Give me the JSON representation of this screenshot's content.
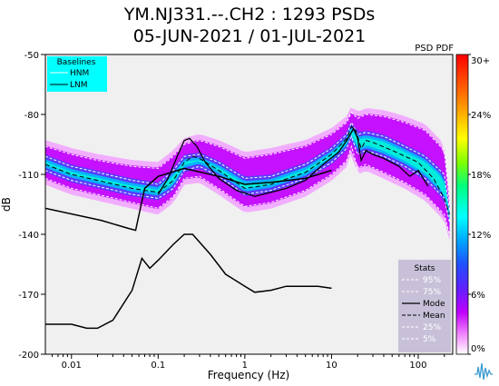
{
  "chart_data": {
    "type": "heatmap",
    "title": "YM.NJ331.--.CH2 : 1293 PSDs",
    "subtitle": "05-JUN-2021 / 01-JUL-2021",
    "corner_label": "PSD PDF",
    "xlabel": "Frequency (Hz)",
    "ylabel": "dB",
    "x_scale": "log",
    "xlim": [
      0.005,
      250
    ],
    "ylim": [
      -200,
      -50
    ],
    "x_ticks": [
      0.01,
      0.1,
      1,
      10,
      100
    ],
    "x_tick_labels": [
      "0.01",
      "0.1",
      "1",
      "10",
      "100"
    ],
    "y_ticks": [
      -50,
      -80,
      -110,
      -140,
      -170,
      -200
    ],
    "y_tick_labels": [
      "-50",
      "-80",
      "-110",
      "-140",
      "-170",
      "-200"
    ],
    "colorbar": {
      "range": [
        0,
        30
      ],
      "tick_labels": [
        "0%",
        "6%",
        "12%",
        "18%",
        "24%",
        "30+"
      ],
      "colors": [
        "#ffffff",
        "#e600ff",
        "#8000ff",
        "#2020ff",
        "#00a0ff",
        "#00ffff",
        "#00ff80",
        "#80ff00",
        "#ffff00",
        "#ff8000",
        "#ff0000"
      ]
    },
    "baselines_legend": {
      "title": "Baselines",
      "items": [
        "HNM",
        "LNM"
      ],
      "background": "#00ffff"
    },
    "stats_legend": {
      "title": "Stats",
      "items": [
        "95%",
        "75%",
        "Mode",
        "Mean",
        "25%",
        "5%"
      ],
      "background": "#c8c0d8"
    },
    "series": [
      {
        "name": "HNM",
        "x": [
          0.005,
          0.022,
          0.045,
          0.055,
          0.07,
          0.1,
          0.2,
          0.5,
          1,
          2,
          5,
          10
        ],
        "y": [
          -127,
          -133,
          -137,
          -138,
          -117,
          -111,
          -107,
          -111,
          -115,
          -114,
          -112,
          -108
        ]
      },
      {
        "name": "LNM",
        "x": [
          0.005,
          0.01,
          0.015,
          0.02,
          0.03,
          0.05,
          0.065,
          0.08,
          0.1,
          0.15,
          0.2,
          0.25,
          0.4,
          0.6,
          1,
          1.3,
          2,
          3,
          5,
          7,
          10
        ],
        "y": [
          -185,
          -185,
          -187,
          -187,
          -183,
          -168,
          -152,
          -157,
          -153,
          -145,
          -140,
          -140,
          -150,
          -160,
          -166,
          -169,
          -168,
          -166,
          -166,
          -166,
          -167
        ]
      },
      {
        "name": "Mode",
        "x": [
          0.1,
          0.13,
          0.17,
          0.2,
          0.23,
          0.28,
          0.35,
          0.5,
          0.8,
          1.3,
          2,
          3,
          5,
          8,
          12,
          15,
          18,
          20,
          22,
          25,
          30,
          40,
          60,
          80,
          100,
          130
        ],
        "y": [
          -120,
          -112,
          -100,
          -93,
          -92,
          -96,
          -104,
          -112,
          -118,
          -121,
          -119,
          -117,
          -113,
          -105,
          -99,
          -93,
          -87,
          -92,
          -103,
          -98,
          -100,
          -102,
          -106,
          -111,
          -108,
          -116
        ]
      },
      {
        "name": "Mean",
        "x": [
          0.005,
          0.01,
          0.02,
          0.05,
          0.1,
          0.15,
          0.2,
          0.25,
          0.3,
          0.5,
          1,
          2,
          5,
          10,
          15,
          17,
          19,
          22,
          25,
          30,
          50,
          100,
          150,
          200,
          230
        ],
        "y": [
          -105,
          -110,
          -113,
          -117,
          -119,
          -113,
          -104,
          -101,
          -102,
          -108,
          -117,
          -115,
          -109,
          -100,
          -92,
          -86,
          -88,
          -97,
          -93,
          -94,
          -98,
          -104,
          -112,
          -122,
          -130
        ]
      },
      {
        "name": "95%",
        "x": [
          0.005,
          0.01,
          0.02,
          0.05,
          0.1,
          0.15,
          0.2,
          0.3,
          0.5,
          1,
          2,
          5,
          10,
          15,
          17,
          20,
          25,
          40,
          70,
          120,
          200,
          230
        ],
        "y": [
          -96,
          -100,
          -103,
          -106,
          -107,
          -101,
          -95,
          -93,
          -96,
          -102,
          -100,
          -96,
          -90,
          -84,
          -79,
          -82,
          -80,
          -81,
          -84,
          -88,
          -98,
          -125
        ]
      },
      {
        "name": "75%",
        "x": [
          0.005,
          0.01,
          0.02,
          0.05,
          0.1,
          0.15,
          0.2,
          0.3,
          0.5,
          1,
          2,
          5,
          10,
          15,
          17,
          20,
          25,
          40,
          70,
          120,
          200,
          230
        ],
        "y": [
          -101,
          -106,
          -109,
          -113,
          -115,
          -108,
          -101,
          -100,
          -104,
          -112,
          -111,
          -105,
          -97,
          -90,
          -84,
          -90,
          -89,
          -91,
          -96,
          -101,
          -110,
          -128
        ]
      },
      {
        "name": "25%",
        "x": [
          0.005,
          0.01,
          0.02,
          0.05,
          0.1,
          0.15,
          0.2,
          0.3,
          0.5,
          1,
          2,
          5,
          10,
          15,
          17,
          20,
          25,
          40,
          70,
          120,
          200,
          230
        ],
        "y": [
          -108,
          -113,
          -116,
          -120,
          -122,
          -117,
          -108,
          -106,
          -111,
          -120,
          -118,
          -112,
          -104,
          -97,
          -91,
          -100,
          -98,
          -101,
          -106,
          -112,
          -122,
          -134
        ]
      },
      {
        "name": "5%",
        "x": [
          0.005,
          0.01,
          0.02,
          0.05,
          0.1,
          0.15,
          0.2,
          0.3,
          0.5,
          1,
          2,
          5,
          10,
          15,
          17,
          20,
          25,
          40,
          70,
          120,
          200,
          230
        ],
        "y": [
          -112,
          -117,
          -120,
          -124,
          -127,
          -121,
          -112,
          -111,
          -117,
          -126,
          -124,
          -118,
          -110,
          -103,
          -96,
          -107,
          -105,
          -109,
          -114,
          -120,
          -130,
          -140
        ]
      }
    ]
  }
}
